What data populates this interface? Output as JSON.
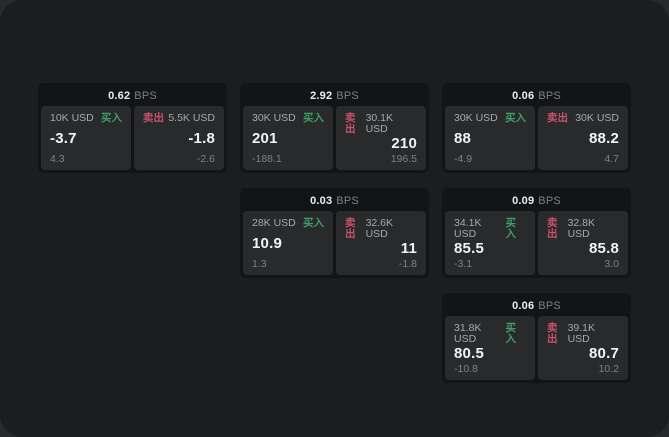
{
  "labels": {
    "buy": "买入",
    "sell": "卖出",
    "bps_unit": "BPS"
  },
  "colors": {
    "buy_green": "#3f9e64",
    "sell_red": "#c9516a",
    "panel_bg": "#1c1d1e",
    "card_bg": "#131415",
    "tile_bg": "#292a2c"
  },
  "cards": [
    {
      "row": 1,
      "col": 1,
      "bps": "0.62",
      "buy": {
        "amount": "10K USD",
        "value": "-3.7",
        "delta": "4.3"
      },
      "sell": {
        "amount": "5.5K USD",
        "value": "-1.8",
        "delta": "-2.6"
      }
    },
    {
      "row": 1,
      "col": 2,
      "bps": "2.92",
      "buy": {
        "amount": "30K USD",
        "value": "201",
        "delta": "-188.1"
      },
      "sell": {
        "amount": "30.1K USD",
        "value": "210",
        "delta": "196.5"
      }
    },
    {
      "row": 1,
      "col": 3,
      "bps": "0.06",
      "buy": {
        "amount": "30K USD",
        "value": "88",
        "delta": "-4.9"
      },
      "sell": {
        "amount": "30K USD",
        "value": "88.2",
        "delta": "4.7"
      }
    },
    {
      "row": 2,
      "col": 2,
      "bps": "0.03",
      "buy": {
        "amount": "28K USD",
        "value": "10.9",
        "delta": "1.3"
      },
      "sell": {
        "amount": "32.6K USD",
        "value": "11",
        "delta": "-1.8"
      }
    },
    {
      "row": 2,
      "col": 3,
      "bps": "0.09",
      "buy": {
        "amount": "34.1K USD",
        "value": "85.5",
        "delta": "-3.1"
      },
      "sell": {
        "amount": "32.8K USD",
        "value": "85.8",
        "delta": "3.0"
      }
    },
    {
      "row": 3,
      "col": 3,
      "bps": "0.06",
      "buy": {
        "amount": "31.8K USD",
        "value": "80.5",
        "delta": "-10.8"
      },
      "sell": {
        "amount": "39.1K USD",
        "value": "80.7",
        "delta": "10.2"
      }
    }
  ]
}
